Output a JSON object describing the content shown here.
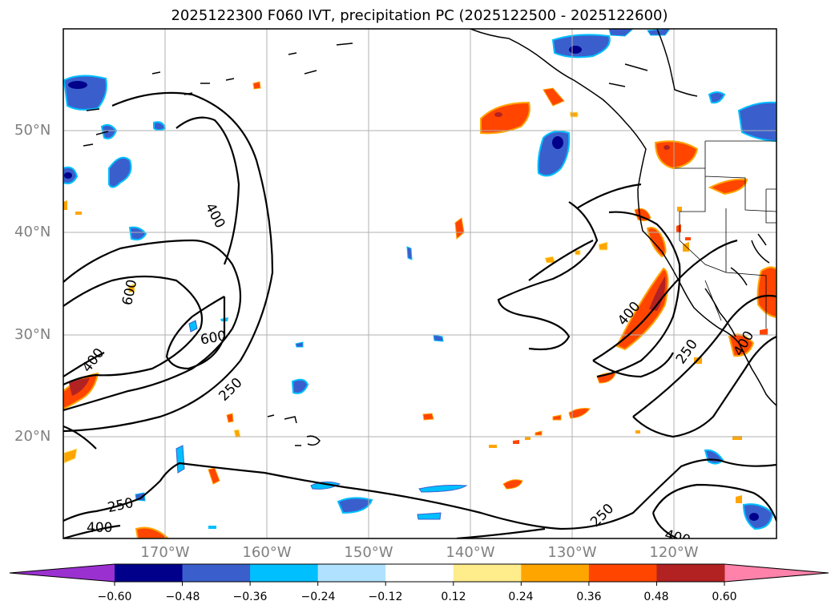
{
  "title": "2025122300 F060 IVT, precipitation PC (2025122500 - 2025122600)",
  "lat_labels": [
    "50°N",
    "40°N",
    "30°N",
    "20°N"
  ],
  "lon_labels": [
    "170°W",
    "160°W",
    "150°W",
    "140°W",
    "130°W",
    "120°W"
  ],
  "colorbar": {
    "ticks": [
      "−0.60",
      "−0.48",
      "−0.36",
      "−0.24",
      "−0.12",
      "0.12",
      "0.24",
      "0.36",
      "0.48",
      "0.60"
    ],
    "colors": [
      "#9b30d0",
      "#00008b",
      "#3a5fcd",
      "#00bfff",
      "#b0e2ff",
      "#ffffff",
      "#ffec8b",
      "#ffa500",
      "#ff4500",
      "#b22222",
      "#ff82ab"
    ]
  },
  "contour_labels": {
    "c400_left": "400",
    "c600_a": "600",
    "c600_b": "600",
    "c400_lower": "400",
    "c250_mid": "250",
    "c250_lower": "250",
    "c400_bottom": "400",
    "c400_right": "400",
    "c250_right": "250",
    "c400_coast": "400",
    "c250_bottom_right": "250",
    "c400_bottom_right": "400"
  }
}
